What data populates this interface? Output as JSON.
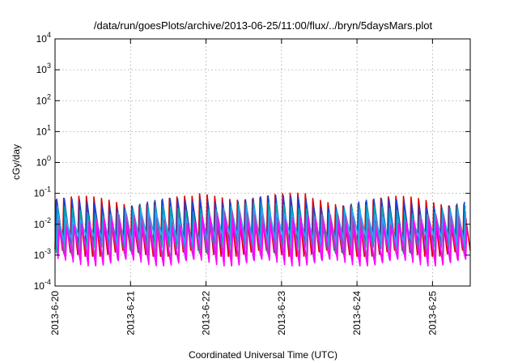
{
  "chart_data": {
    "type": "line",
    "title": "/data/run/goesPlots/archive/2013-06-25/11:00/flux/../bryn/5daysMars.plot",
    "xlabel": "Coordinated Universal Time (UTC)",
    "ylabel": "cGy/day",
    "x_ticks": [
      "2013-6-20",
      "2013-6-21",
      "2013-6-22",
      "2013-6-23",
      "2013-6-24",
      "2013-6-25"
    ],
    "xlim_days": [
      0,
      5.5
    ],
    "y_scale": "log",
    "ylim": [
      0.0001,
      10000
    ],
    "y_ticks": [
      {
        "base": "10",
        "exp": "-4"
      },
      {
        "base": "10",
        "exp": "-3"
      },
      {
        "base": "10",
        "exp": "-2"
      },
      {
        "base": "10",
        "exp": "-1"
      },
      {
        "base": "10",
        "exp": "0"
      },
      {
        "base": "10",
        "exp": "1"
      },
      {
        "base": "10",
        "exp": "2"
      },
      {
        "base": "10",
        "exp": "3"
      },
      {
        "base": "10",
        "exp": "4"
      }
    ],
    "grid": true,
    "sawtooth_period_days": 0.1,
    "series": [
      {
        "color": "#dd0000",
        "peak": 0.06,
        "trough": 0.0012
      },
      {
        "color": "#1f3fd0",
        "peak": 0.05,
        "trough": 0.002
      },
      {
        "color": "#00a8a8",
        "peak": 0.03,
        "trough": 0.0015
      },
      {
        "color": "#2fa0ff",
        "peak": 0.02,
        "trough": 0.003
      },
      {
        "color": "#a050c0",
        "peak": 0.015,
        "trough": 0.0009
      },
      {
        "color": "#ff00ff",
        "peak": 0.01,
        "trough": 0.0006
      }
    ]
  }
}
